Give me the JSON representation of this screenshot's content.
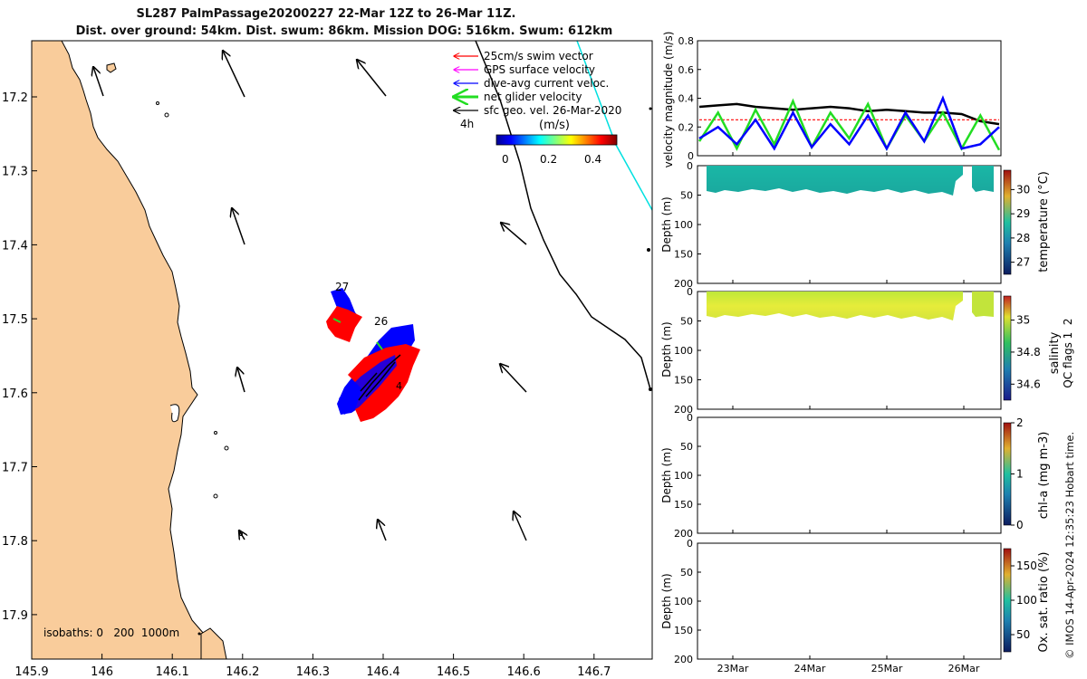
{
  "title": {
    "line1": "SL287 PalmPassage20200227 22-Mar 12Z to 26-Mar 11Z.",
    "line2": "Dist. over ground: 54km. Dist. swum: 86km. Mission DOG: 516km. Swum: 612km"
  },
  "colors": {
    "land": "#f9cc9b",
    "swim": "#ff0000",
    "gps": "#ff00ff",
    "current": "#0000ff",
    "net": "#22dd22",
    "sfc": "#000000",
    "track_line": "#00e0e0"
  },
  "map": {
    "x_ticks": [
      "145.9",
      "146",
      "146.1",
      "146.2",
      "146.3",
      "146.4",
      "146.5",
      "146.6",
      "146.7"
    ],
    "y_ticks": [
      "17.2",
      "17.3",
      "17.4",
      "17.5",
      "17.6",
      "17.7",
      "17.8",
      "17.9"
    ],
    "legend": [
      {
        "label": "25cm/s swim vector",
        "color": "#ff0000"
      },
      {
        "label": "GPS surface velocity",
        "color": "#ff00ff"
      },
      {
        "label": "dive-avg current veloc.",
        "color": "#0000ff"
      },
      {
        "label": "net glider velocity",
        "color": "#22dd22"
      },
      {
        "label": "sfc geo. vel. 26-Mar-2020",
        "color": "#000000"
      }
    ],
    "legend_note": "4h",
    "colorbar_label": "(m/s)",
    "colorbar_ticks": [
      "0",
      "0.2",
      "0.4"
    ],
    "day_labels": [
      "27",
      "26"
    ],
    "isobath_text": "isobaths: 0   200  1000m"
  },
  "chart_data": [
    {
      "type": "line",
      "title": "",
      "ylabel": "velocity magnitude (m/s)",
      "ylim": [
        0,
        0.8
      ],
      "yticks": [
        "0",
        "0.2",
        "0.4",
        "0.6",
        "0.8"
      ],
      "x": [
        0,
        0.25,
        0.5,
        0.75,
        1,
        1.25,
        1.5,
        1.75,
        2,
        2.25,
        2.5,
        2.75,
        3,
        3.25,
        3.5,
        3.75,
        4
      ],
      "series": [
        {
          "name": "sfc geo. vel.",
          "color": "#000000",
          "values": [
            0.34,
            0.35,
            0.36,
            0.34,
            0.33,
            0.32,
            0.33,
            0.34,
            0.33,
            0.31,
            0.32,
            0.31,
            0.3,
            0.3,
            0.29,
            0.24,
            0.22
          ]
        },
        {
          "name": "swim speed",
          "color": "#ff0000",
          "values": [
            0.25,
            0.25,
            0.25,
            0.25,
            0.25,
            0.25,
            0.25,
            0.25,
            0.25,
            0.25,
            0.25,
            0.25,
            0.25,
            0.25,
            0.25,
            0.25,
            0.25
          ]
        },
        {
          "name": "net glider velocity",
          "color": "#22dd22",
          "values": [
            0.1,
            0.3,
            0.05,
            0.32,
            0.08,
            0.38,
            0.06,
            0.3,
            0.12,
            0.36,
            0.05,
            0.28,
            0.1,
            0.3,
            0.05,
            0.28,
            0.04
          ]
        },
        {
          "name": "dive-avg current veloc.",
          "color": "#0000ff",
          "values": [
            0.12,
            0.2,
            0.08,
            0.25,
            0.05,
            0.3,
            0.06,
            0.22,
            0.08,
            0.28,
            0.05,
            0.3,
            0.1,
            0.4,
            0.05,
            0.08,
            0.2
          ]
        }
      ]
    },
    {
      "type": "heatmap",
      "ylabel": "Depth (m)",
      "ylim": [
        0,
        200
      ],
      "yticks": [
        "0",
        "50",
        "100",
        "150",
        "200"
      ],
      "colorbar_label": "temperature (°C)",
      "colorbar_ticks": [
        "27",
        "28",
        "29",
        "30"
      ]
    },
    {
      "type": "heatmap",
      "ylabel": "Depth (m)",
      "ylim": [
        0,
        200
      ],
      "yticks": [
        "0",
        "50",
        "100",
        "150",
        "200"
      ],
      "colorbar_label": "salinity",
      "colorbar_ticks": [
        "34.6",
        "34.8",
        "35"
      ]
    },
    {
      "type": "heatmap",
      "ylabel": "Depth (m)",
      "ylim": [
        0,
        200
      ],
      "yticks": [
        "0",
        "50",
        "100",
        "150",
        "200"
      ],
      "colorbar_label": "chl-a (mg m-3)",
      "colorbar_ticks": [
        "0",
        "1",
        "2"
      ]
    },
    {
      "type": "heatmap",
      "ylabel": "Depth (m)",
      "ylim": [
        0,
        200
      ],
      "yticks": [
        "0",
        "50",
        "100",
        "150",
        "200"
      ],
      "colorbar_label": "Ox. sat. ratio (%)",
      "colorbar_ticks": [
        "50",
        "100",
        "150"
      ]
    }
  ],
  "time_axis": [
    "23Mar",
    "24Mar",
    "25Mar",
    "26Mar"
  ],
  "qc_flags": "QC flags 1  2",
  "footer": "© IMOS 14-Apr-2024 12:35:23 Hobart time."
}
